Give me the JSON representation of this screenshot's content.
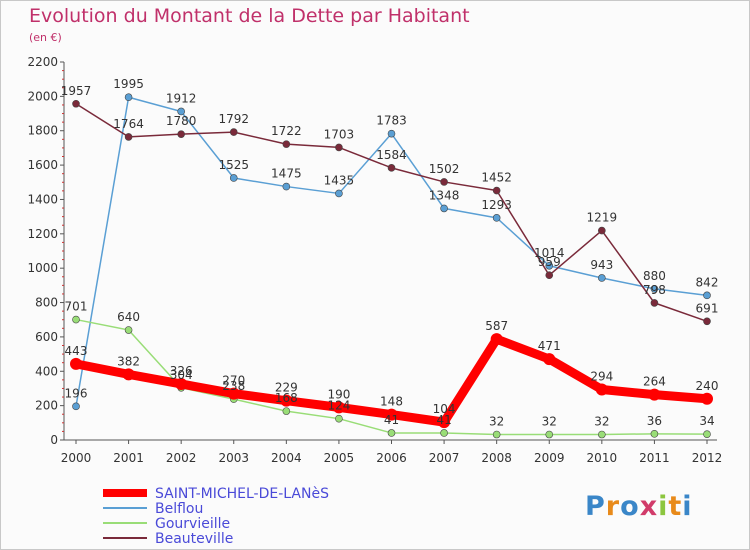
{
  "header": {
    "title": "Evolution du Montant de la Dette par Habitant",
    "unit": "(en €)"
  },
  "chart_data": {
    "type": "line",
    "title": "Evolution du Montant de la Dette par Habitant",
    "subtitle": "(en €)",
    "xlabel": "",
    "ylabel": "",
    "ylim": [
      0,
      2200
    ],
    "yticks": [
      0,
      200,
      400,
      600,
      800,
      1000,
      1200,
      1400,
      1600,
      1800,
      2000,
      2200
    ],
    "categories": [
      "2000",
      "2001",
      "2002",
      "2003",
      "2004",
      "2005",
      "2006",
      "2007",
      "2008",
      "2009",
      "2010",
      "2011",
      "2012"
    ],
    "grid": false,
    "legend_position": "bottom-left",
    "series": [
      {
        "name": "SAINT-MICHEL-DE-LANèS",
        "color": "#ff0000",
        "values": [
          443,
          382,
          326,
          270,
          229,
          190,
          148,
          104,
          587,
          471,
          294,
          264,
          240
        ],
        "labels": [
          "443",
          "382",
          "326",
          "270",
          "229",
          "190",
          "148",
          "104",
          "587",
          "471",
          "294",
          "264",
          "240"
        ]
      },
      {
        "name": "Belflou",
        "color": "#5a9fd4",
        "values": [
          196,
          1995,
          1912,
          1525,
          1475,
          1435,
          1783,
          1348,
          1293,
          1014,
          943,
          880,
          842
        ],
        "labels": [
          "196",
          "1995",
          "1912",
          "1525",
          "1475",
          "1435",
          "1783",
          "1348",
          "1293",
          "1014",
          "943",
          "880",
          "842"
        ]
      },
      {
        "name": "Gourvieille",
        "color": "#99dd77",
        "values": [
          701,
          640,
          304,
          238,
          168,
          124,
          41,
          41,
          32,
          32,
          32,
          36,
          34
        ],
        "labels": [
          "701",
          "640",
          "304",
          "238",
          "168",
          "124",
          "41",
          "41",
          "32",
          "32",
          "32",
          "36",
          "34"
        ]
      },
      {
        "name": "Beauteville",
        "color": "#7a2a3a",
        "values": [
          1957,
          1764,
          1780,
          1792,
          1722,
          1703,
          1584,
          1502,
          1452,
          959,
          1219,
          798,
          691
        ],
        "labels": [
          "1957",
          "1764",
          "1780",
          "1792",
          "1722",
          "1703",
          "1584",
          "1502",
          "1452",
          "959",
          "1219",
          "798",
          "691"
        ]
      }
    ]
  },
  "logo": {
    "text": "Proxiti",
    "letters": [
      {
        "ch": "P",
        "color": "#3a86c8"
      },
      {
        "ch": "r",
        "color": "#e88a1a"
      },
      {
        "ch": "o",
        "color": "#3a86c8"
      },
      {
        "ch": "x",
        "color": "#d13b6a"
      },
      {
        "ch": "i",
        "color": "#8cc63f"
      },
      {
        "ch": "t",
        "color": "#e88a1a"
      },
      {
        "ch": "i",
        "color": "#3a86c8"
      }
    ]
  }
}
